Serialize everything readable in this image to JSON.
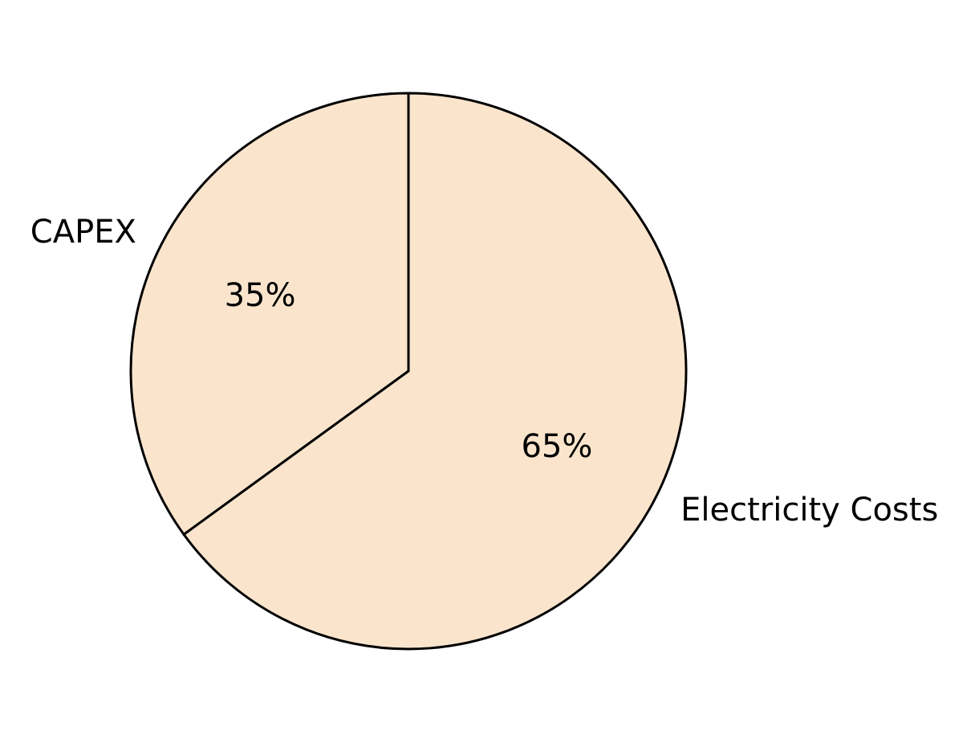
{
  "chart_data": {
    "type": "pie",
    "slices": [
      {
        "label": "CAPEX",
        "value": 35,
        "pct_label": "35%",
        "color": "#fae5cc"
      },
      {
        "label": "Electricity Costs",
        "value": 65,
        "pct_label": "65%",
        "color": "#fae5cc"
      }
    ],
    "start_angle_deg": 90,
    "direction": "counterclockwise",
    "edge_color": "#000000",
    "title": "",
    "legend": "none"
  }
}
